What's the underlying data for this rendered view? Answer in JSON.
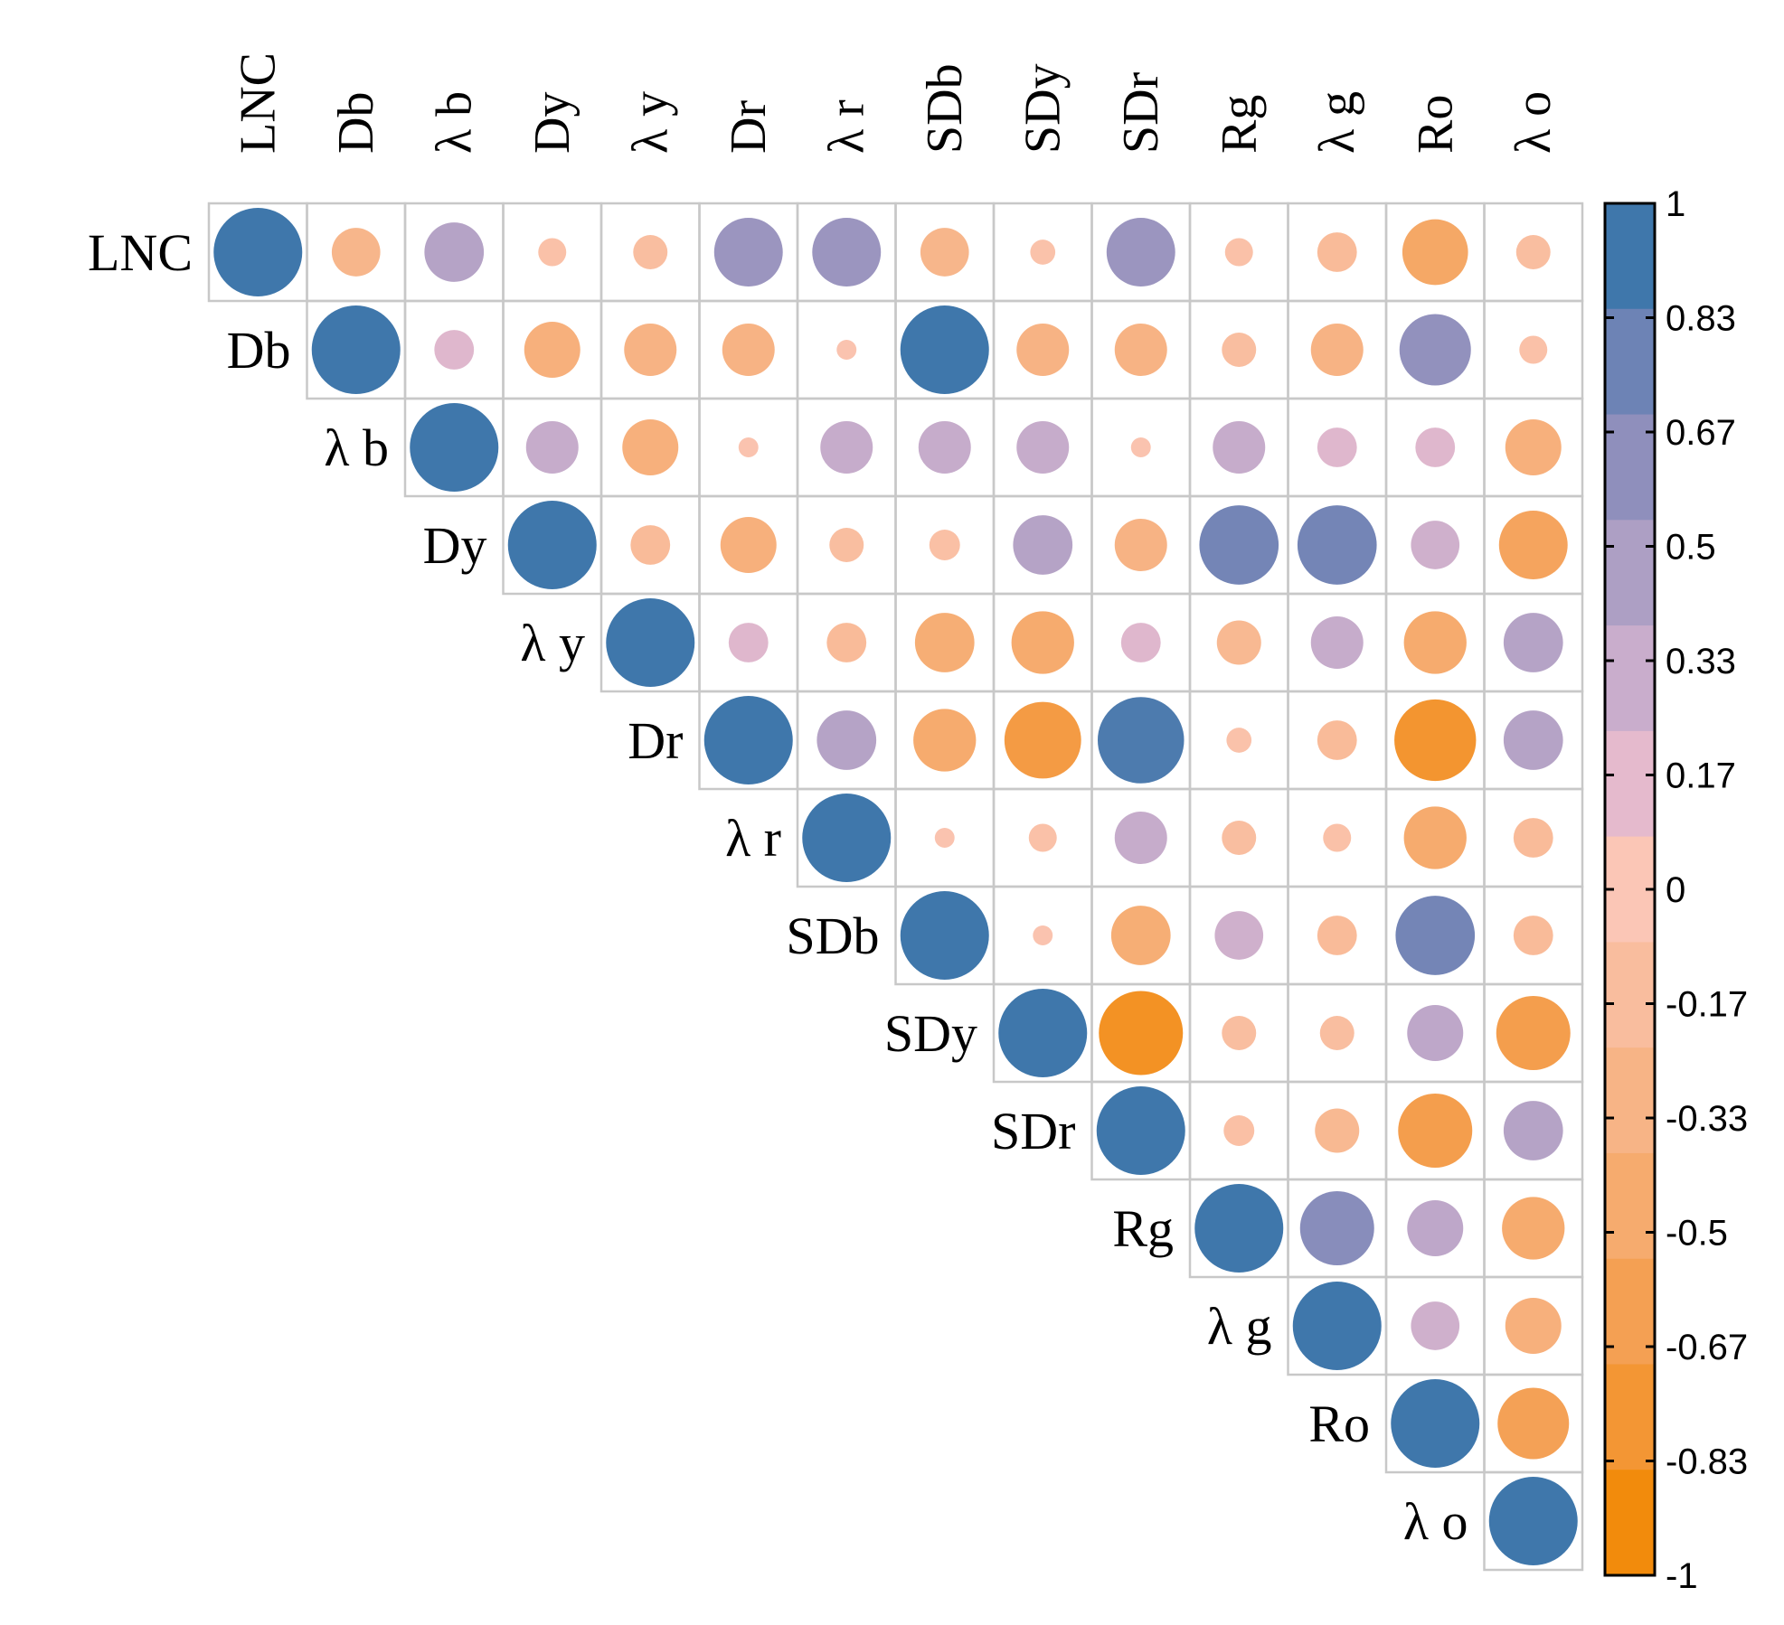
{
  "chart_data": {
    "type": "heatmap",
    "subtype": "correlation-circle-matrix-upper",
    "variables": [
      "LNC",
      "Db",
      "λ b",
      "Dy",
      "λ y",
      "Dr",
      "λ r",
      "SDb",
      "SDy",
      "SDr",
      "Rg",
      "λ g",
      "Ro",
      "λ o"
    ],
    "matrix_upper": [
      [
        1,
        -0.3,
        0.45,
        -0.1,
        -0.15,
        0.6,
        0.6,
        -0.3,
        -0.08,
        0.6,
        -0.1,
        -0.2,
        -0.55,
        -0.15
      ],
      [
        1,
        0.2,
        -0.4,
        -0.35,
        -0.35,
        -0.05,
        1,
        -0.35,
        -0.35,
        -0.15,
        -0.35,
        0.65,
        -0.1
      ],
      [
        1,
        0.35,
        -0.4,
        -0.05,
        0.35,
        0.35,
        0.35,
        -0.05,
        0.35,
        0.2,
        0.2,
        -0.4
      ],
      [
        1,
        -0.2,
        -0.4,
        -0.15,
        -0.12,
        0.45,
        -0.35,
        0.8,
        0.8,
        0.3,
        -0.6
      ],
      [
        1,
        0.2,
        -0.2,
        -0.45,
        -0.5,
        0.2,
        -0.25,
        0.35,
        -0.5,
        0.45
      ],
      [
        1,
        0.45,
        -0.5,
        -0.75,
        0.95,
        -0.08,
        -0.2,
        -0.85,
        0.45
      ],
      [
        1,
        -0.05,
        -0.1,
        0.35,
        -0.15,
        -0.1,
        -0.5,
        -0.2
      ],
      [
        1,
        -0.05,
        -0.45,
        0.3,
        -0.2,
        0.8,
        -0.2
      ],
      [
        1,
        -0.9,
        -0.15,
        -0.15,
        0.4,
        -0.7
      ],
      [
        1,
        -0.12,
        -0.25,
        -0.7,
        0.45
      ],
      [
        1,
        0.7,
        0.4,
        -0.5
      ],
      [
        1,
        0.3,
        -0.4
      ],
      [
        1,
        -0.65
      ],
      [
        1
      ]
    ],
    "legend": {
      "range": [
        -1,
        1
      ],
      "tick_labels": [
        "1",
        "0.83",
        "0.67",
        "0.5",
        "0.33",
        "0.17",
        "0",
        "-0.17",
        "-0.33",
        "-0.5",
        "-0.67",
        "-0.83",
        "-1"
      ],
      "palette": [
        "#f28b0c",
        "#f39634",
        "#f4a053",
        "#f6ab6e",
        "#f7b486",
        "#f9bd9e",
        "#fbc6b6",
        "#e5bacd",
        "#c9adcc",
        "#ad9fc4",
        "#8f8fbc",
        "#6d83b5",
        "#3f77ab"
      ],
      "placement": "right"
    }
  },
  "colors": {
    "positive": "#3f77ab",
    "negative": "#f28b0c",
    "neutral": "#fbc6b6",
    "grid": "#c8c8c8"
  }
}
